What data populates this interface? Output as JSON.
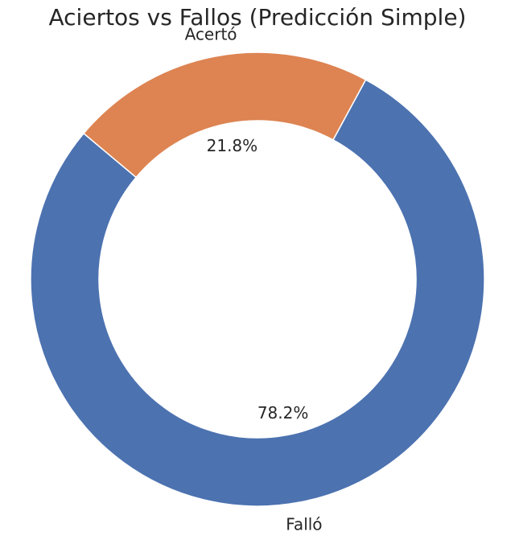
{
  "chart_data": {
    "type": "pie",
    "style": "donut",
    "title": "Aciertos vs Fallos (Predicción Simple)",
    "categories": [
      "Falló",
      "Acertó"
    ],
    "values": [
      78.2,
      21.8
    ],
    "percent_labels": [
      "78.2%",
      "21.8%"
    ],
    "colors": [
      "#4C72B0",
      "#DD8452"
    ],
    "legend": "none"
  }
}
